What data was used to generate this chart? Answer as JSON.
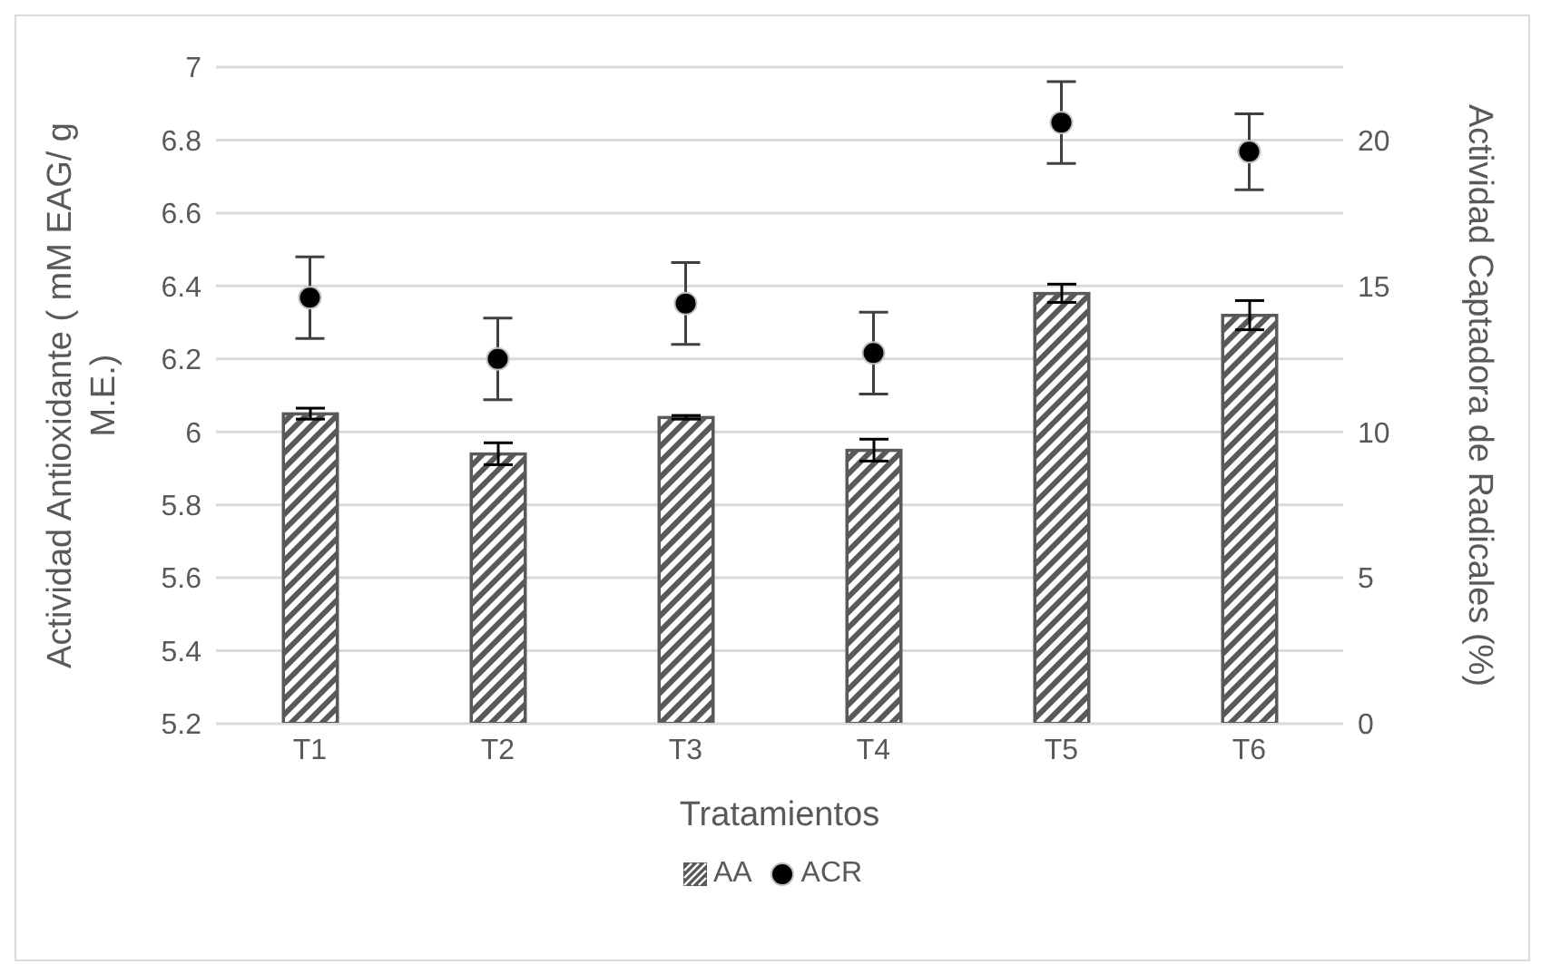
{
  "chart_data": {
    "type": "bar",
    "xlabel": "Tratamientos",
    "ylabel": "Actividad Antioxidante ( mM EAG/ g M.E.)",
    "y2label": "Actividad Captadora de Radicales (%)",
    "categories": [
      "T1",
      "T2",
      "T3",
      "T4",
      "T5",
      "T6"
    ],
    "series": [
      {
        "name": "AA",
        "color": "#595959",
        "values": [
          6.05,
          5.94,
          6.04,
          5.95,
          6.38,
          6.32
        ],
        "errors": [
          0.015,
          0.03,
          0.005,
          0.03,
          0.025,
          0.04
        ]
      },
      {
        "name": "ACR",
        "type": "scatter",
        "axis": "y2",
        "color": "#000000",
        "values": [
          14.6,
          12.5,
          14.4,
          12.7,
          20.6,
          19.6
        ],
        "errors": [
          1.4,
          1.4,
          1.4,
          1.4,
          1.4,
          1.3
        ]
      }
    ],
    "ylim": [
      5.2,
      7
    ],
    "yticks": [
      5.2,
      5.4,
      5.6,
      5.8,
      6,
      6.2,
      6.4,
      6.6,
      6.8,
      7
    ],
    "y2lim": [
      0,
      22.5
    ],
    "y2ticks": [
      0,
      5,
      10,
      15,
      20
    ],
    "grid": "y",
    "legend": "bottom",
    "marker": "circle"
  }
}
